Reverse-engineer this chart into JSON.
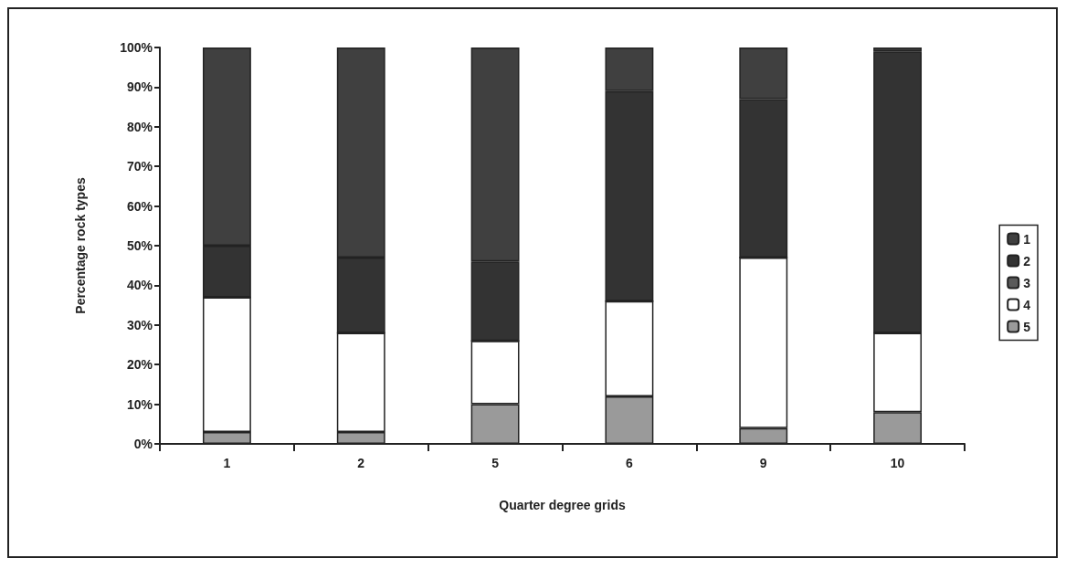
{
  "chart_data": {
    "type": "bar",
    "stacked": true,
    "xlabel": "Quarter degree grids",
    "ylabel": "Percentage rock types",
    "categories": [
      "1",
      "2",
      "5",
      "6",
      "9",
      "10"
    ],
    "series": [
      {
        "name": "5",
        "color": "#9a9a9a",
        "values": [
          3,
          3,
          10,
          12,
          4,
          8
        ]
      },
      {
        "name": "4",
        "color": "#ffffff",
        "values": [
          34,
          25,
          16,
          24,
          43,
          20
        ]
      },
      {
        "name": "3",
        "color": "#5a5a5a",
        "values": [
          0,
          0,
          0,
          0,
          0,
          0
        ]
      },
      {
        "name": "2",
        "color": "#333333",
        "values": [
          13,
          19,
          20,
          53,
          40,
          71
        ]
      },
      {
        "name": "1",
        "color": "#404040",
        "values": [
          50,
          53,
          54,
          11,
          13,
          1
        ]
      }
    ],
    "ylim": [
      0,
      100
    ],
    "yticks": [
      {
        "value": 0,
        "label": "0%"
      },
      {
        "value": 10,
        "label": "10%"
      },
      {
        "value": 20,
        "label": "20%"
      },
      {
        "value": 30,
        "label": "30%"
      },
      {
        "value": 40,
        "label": "40%"
      },
      {
        "value": 50,
        "label": "50%"
      },
      {
        "value": 60,
        "label": "60%"
      },
      {
        "value": 70,
        "label": "70%"
      },
      {
        "value": 80,
        "label": "80%"
      },
      {
        "value": 90,
        "label": "90%"
      },
      {
        "value": 100,
        "label": "100%"
      }
    ],
    "grid": false,
    "legend": "right"
  }
}
